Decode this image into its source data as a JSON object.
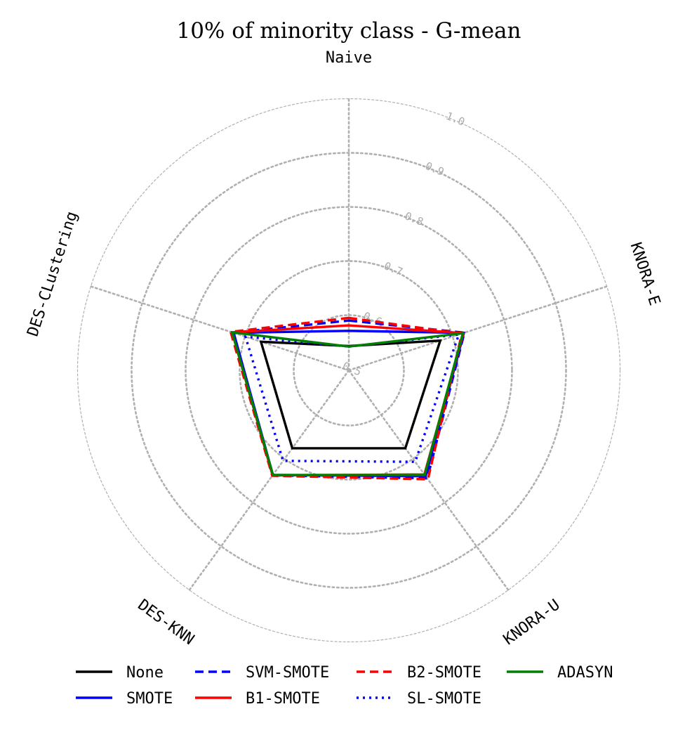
{
  "chart_data": {
    "type": "radar",
    "title": "10% of minority class - G-mean",
    "axes": [
      "Naive",
      "KNORA-E",
      "KNORA-U",
      "DES-KNN",
      "DES-CLustering"
    ],
    "rlim": [
      0.5,
      1.0
    ],
    "rticks": [
      0.5,
      0.6,
      0.7,
      0.8,
      0.9,
      1.0
    ],
    "rtick_labels": [
      "0.5",
      "0.6",
      "0.7",
      "0.8",
      "0.9",
      "1.0"
    ],
    "grid": true,
    "legend_position": "bottom",
    "series": [
      {
        "name": "None",
        "color": "#000000",
        "style": "solid",
        "values": [
          0.543,
          0.676,
          0.676,
          0.676,
          0.669
        ]
      },
      {
        "name": "SMOTE",
        "color": "#0000ff",
        "style": "solid",
        "values": [
          0.571,
          0.722,
          0.74,
          0.737,
          0.722
        ]
      },
      {
        "name": "SVM-SMOTE",
        "color": "#0000ff",
        "style": "dashed",
        "values": [
          0.59,
          0.723,
          0.745,
          0.738,
          0.723
        ]
      },
      {
        "name": "B1-SMOTE",
        "color": "#ff0000",
        "style": "solid",
        "values": [
          0.581,
          0.721,
          0.736,
          0.738,
          0.725
        ]
      },
      {
        "name": "B2-SMOTE",
        "color": "#ff0000",
        "style": "dashed",
        "values": [
          0.595,
          0.718,
          0.747,
          0.739,
          0.728
        ]
      },
      {
        "name": "SL-SMOTE",
        "color": "#0000ff",
        "style": "dotted",
        "values": [
          0.542,
          0.712,
          0.707,
          0.705,
          0.699
        ]
      },
      {
        "name": "ADASYN",
        "color": "#008000",
        "style": "solid",
        "values": [
          0.542,
          0.72,
          0.737,
          0.737,
          0.725
        ]
      }
    ]
  }
}
